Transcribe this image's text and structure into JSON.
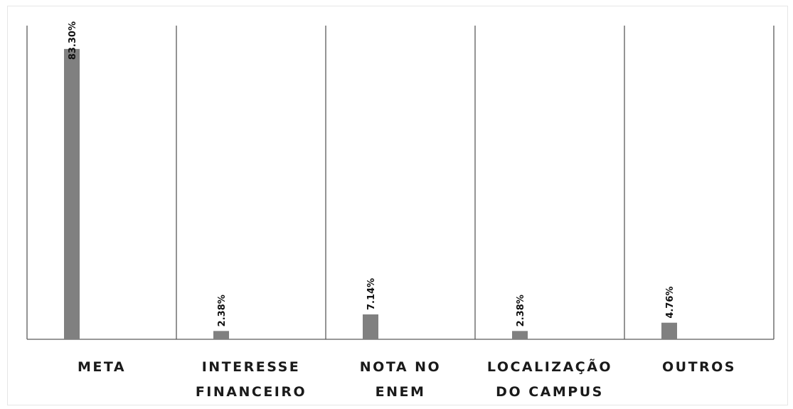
{
  "chart_data": {
    "type": "bar",
    "categories": [
      [
        "META"
      ],
      [
        "INTERESSE",
        "FINANCEIRO"
      ],
      [
        "NOTA NO",
        "ENEM"
      ],
      [
        "LOCALIZAÇÃO",
        "DO CAMPUS"
      ],
      [
        "OUTROS"
      ]
    ],
    "values": [
      83.3,
      2.38,
      7.14,
      2.38,
      4.76
    ],
    "data_labels": [
      "83.30%",
      "2.38%",
      "7.14%",
      "2.38%",
      "4.76%"
    ],
    "title": "",
    "xlabel": "",
    "ylabel": "",
    "ylim": [
      0,
      90
    ],
    "grid": false,
    "legend": "none",
    "colors": {
      "bar": "#808080",
      "axis": "#5a5a5a",
      "text": "#1a1a1a"
    }
  }
}
